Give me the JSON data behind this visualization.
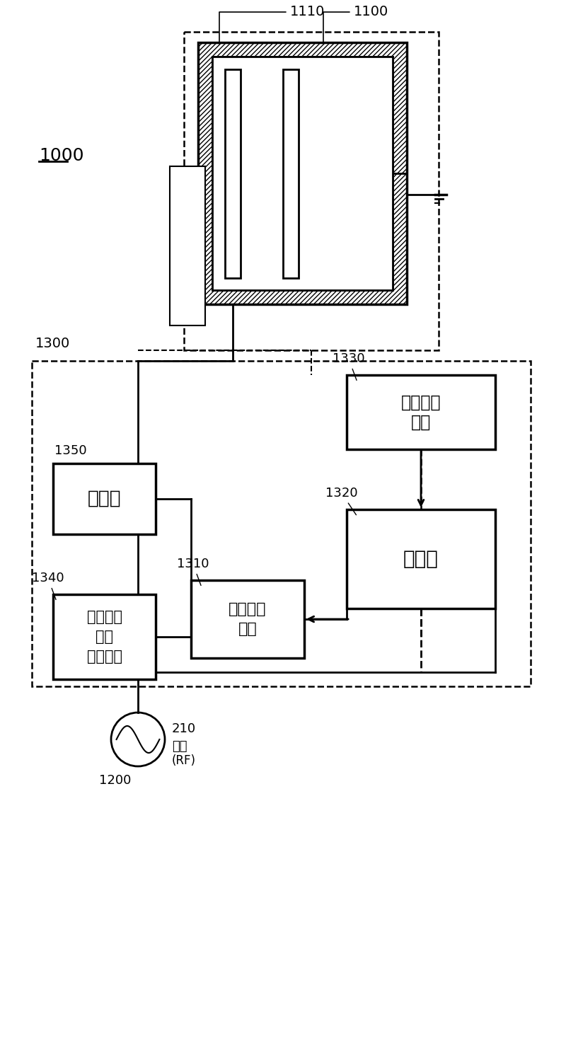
{
  "bg_color": "#ffffff",
  "lc": "#000000",
  "figsize": [
    8.0,
    14.91
  ],
  "dpi": 100,
  "labels": {
    "1000": "1000",
    "1100": "1100",
    "1110": "1110",
    "1200": "1200",
    "1300": "1300",
    "1310": "1310",
    "1320": "1320",
    "1330": "1330",
    "1340": "1340",
    "1350": "1350",
    "210": "210"
  },
  "texts": {
    "box_1350": "电感器",
    "box_1340_l1": "反射功率",
    "box_1340_l2": "测量单元",
    "box_1310_l1": "阻抗匹配",
    "box_1310_l2": "单元",
    "box_1320": "控制器",
    "box_1330_l1": "阻抗测量",
    "box_1330_l2": "单元",
    "rf_label": "射频",
    "rf_paren": "(RF)"
  }
}
